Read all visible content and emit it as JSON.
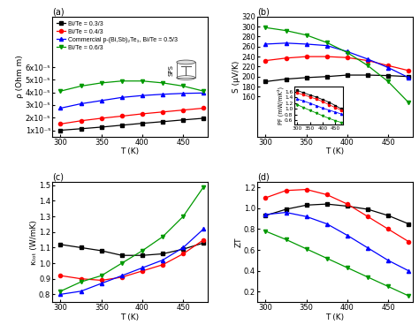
{
  "chart_data": [
    {
      "type": "line",
      "title": "(a)",
      "xlabel": "T (K)",
      "ylabel": "ρ (Ohm m)",
      "x": [
        300,
        325,
        350,
        375,
        400,
        425,
        450,
        475
      ],
      "xlim": [
        290,
        480
      ],
      "xticks": [
        300,
        350,
        400,
        450
      ],
      "ylim": [
        5e-06,
        0.0001
      ],
      "yticks": [
        {
          "value": 1e-05,
          "label": "1x10⁻⁵"
        },
        {
          "value": 2e-05,
          "label": "2x10⁻⁵"
        },
        {
          "value": 3e-05,
          "label": "3x10⁻⁵"
        },
        {
          "value": 4e-05,
          "label": "4x10⁻⁵"
        },
        {
          "value": 5e-05,
          "label": "5x10⁻⁵"
        },
        {
          "value": 6e-05,
          "label": "6x10⁻⁵"
        }
      ],
      "legend": "upper left",
      "annotations": [
        "SPS"
      ],
      "series": [
        {
          "name": "Bi/Te = 0.3/3",
          "color": "#000000",
          "marker": "square",
          "line_style": "solid",
          "values": [
            1e-05,
            1.12e-05,
            1.25e-05,
            1.4e-05,
            1.55e-05,
            1.68e-05,
            1.82e-05,
            1.95e-05
          ]
        },
        {
          "name": "Bi/Te = 0.4/3",
          "color": "#ff0000",
          "marker": "circle",
          "line_style": "solid",
          "values": [
            1.5e-05,
            1.75e-05,
            1.95e-05,
            2.12e-05,
            2.3e-05,
            2.45e-05,
            2.6e-05,
            2.75e-05
          ]
        },
        {
          "name": "Commercial p-(Bi,Sb)₂Te₃, Bi/Te = 0.5/3",
          "color": "#0000ff",
          "marker": "triangle_up",
          "line_style": "solid",
          "values": [
            2.75e-05,
            3.1e-05,
            3.35e-05,
            3.6e-05,
            3.75e-05,
            3.85e-05,
            3.92e-05,
            3.95e-05
          ]
        },
        {
          "name": "Bi/Te = 0.6/3",
          "color": "#009900",
          "marker": "triangle_down",
          "line_style": "solid",
          "values": [
            4.1e-05,
            4.5e-05,
            4.75e-05,
            4.9e-05,
            4.9e-05,
            4.75e-05,
            4.5e-05,
            4.1e-05
          ]
        }
      ]
    },
    {
      "type": "line",
      "title": "(b)",
      "xlabel": "T (K)",
      "ylabel": "S (μV/K)",
      "x": [
        300,
        325,
        350,
        375,
        400,
        425,
        450,
        475
      ],
      "xlim": [
        290,
        480
      ],
      "xticks": [
        300,
        350,
        400,
        450
      ],
      "ylim": [
        80,
        320
      ],
      "yticks": [
        160,
        180,
        200,
        220,
        240,
        260,
        280,
        300,
        320
      ],
      "series": [
        {
          "color": "#000000",
          "marker": "square",
          "line_style": "solid",
          "values": [
            190,
            195,
            198,
            200,
            203,
            203,
            202,
            200
          ]
        },
        {
          "color": "#ff0000",
          "marker": "circle",
          "line_style": "solid",
          "values": [
            232,
            237,
            240,
            240,
            238,
            232,
            222,
            212
          ]
        },
        {
          "color": "#0000ff",
          "marker": "triangle_up",
          "line_style": "solid",
          "values": [
            265,
            267,
            265,
            262,
            250,
            235,
            218,
            198
          ]
        },
        {
          "color": "#009900",
          "marker": "triangle_down",
          "line_style": "solid",
          "values": [
            298,
            292,
            283,
            268,
            248,
            222,
            190,
            148
          ]
        }
      ]
    },
    {
      "type": "line",
      "ylabel": "PF (mW/mK²)",
      "x": [
        300,
        325,
        350,
        375,
        400,
        425,
        450,
        475
      ],
      "xlim": [
        290,
        480
      ],
      "xticks": [
        300,
        350,
        400,
        450
      ],
      "ylim": [
        0.45,
        1.8
      ],
      "yticks": [
        0.6,
        0.8,
        {
          "value": 1,
          "label": "1.0"
        },
        1.2,
        1.4,
        1.6
      ],
      "series": [
        {
          "color": "#000000",
          "marker": "square",
          "line_style": "solid",
          "values": [
            1.65,
            1.57,
            1.49,
            1.42,
            1.33,
            1.24,
            1.12,
            1.0
          ]
        },
        {
          "color": "#ff0000",
          "marker": "circle",
          "line_style": "solid",
          "values": [
            1.56,
            1.5,
            1.42,
            1.35,
            1.26,
            1.15,
            1.05,
            0.95
          ]
        },
        {
          "color": "#0000ff",
          "marker": "triangle_up",
          "line_style": "solid",
          "values": [
            1.35,
            1.28,
            1.2,
            1.12,
            1.03,
            0.96,
            0.89,
            0.82
          ]
        },
        {
          "color": "#009900",
          "marker": "triangle_down",
          "line_style": "solid",
          "values": [
            1.15,
            1.05,
            0.95,
            0.86,
            0.76,
            0.67,
            0.59,
            0.52
          ]
        }
      ]
    },
    {
      "type": "line",
      "title": "(c)",
      "xlabel": "T (K)",
      "ylabel": "κₜₒₜ (W/mK)",
      "x": [
        300,
        325,
        350,
        375,
        400,
        425,
        450,
        475
      ],
      "xlim": [
        290,
        480
      ],
      "xticks": [
        300,
        350,
        400,
        450
      ],
      "ylim": [
        0.75,
        1.52
      ],
      "yticks": [
        0.8,
        0.9,
        {
          "value": 1,
          "label": "1.0"
        },
        1.1,
        1.2,
        1.3,
        1.4,
        1.5
      ],
      "series": [
        {
          "color": "#000000",
          "marker": "square",
          "line_style": "solid",
          "values": [
            1.12,
            1.1,
            1.08,
            1.05,
            1.05,
            1.06,
            1.09,
            1.13
          ]
        },
        {
          "color": "#ff0000",
          "marker": "circle",
          "line_style": "solid",
          "values": [
            0.92,
            0.9,
            0.89,
            0.91,
            0.95,
            0.99,
            1.06,
            1.15
          ]
        },
        {
          "color": "#0000ff",
          "marker": "triangle_up",
          "line_style": "solid",
          "values": [
            0.8,
            0.82,
            0.87,
            0.92,
            0.97,
            1.02,
            1.1,
            1.22
          ]
        },
        {
          "color": "#009900",
          "marker": "triangle_down",
          "line_style": "solid",
          "values": [
            0.82,
            0.88,
            0.92,
            1.0,
            1.08,
            1.17,
            1.3,
            1.49
          ]
        }
      ]
    },
    {
      "type": "line",
      "title": "(d)",
      "xlabel": "T (K)",
      "ylabel": "ZT",
      "x": [
        300,
        325,
        350,
        375,
        400,
        425,
        450,
        475
      ],
      "xlim": [
        290,
        480
      ],
      "xticks": [
        300,
        350,
        400,
        450
      ],
      "ylim": [
        0.1,
        1.25
      ],
      "yticks": [
        0.2,
        0.4,
        0.6,
        0.8,
        {
          "value": 1,
          "label": "1.0"
        },
        1.2
      ],
      "series": [
        {
          "color": "#000000",
          "marker": "square",
          "line_style": "solid",
          "values": [
            0.93,
            0.99,
            1.03,
            1.04,
            1.02,
            0.99,
            0.93,
            0.85
          ]
        },
        {
          "color": "#ff0000",
          "marker": "circle",
          "line_style": "solid",
          "values": [
            1.1,
            1.17,
            1.18,
            1.13,
            1.04,
            0.92,
            0.8,
            0.68
          ]
        },
        {
          "color": "#0000ff",
          "marker": "triangle_up",
          "line_style": "solid",
          "values": [
            0.94,
            0.96,
            0.92,
            0.85,
            0.74,
            0.62,
            0.5,
            0.4
          ]
        },
        {
          "color": "#009900",
          "marker": "triangle_down",
          "line_style": "solid",
          "values": [
            0.78,
            0.7,
            0.61,
            0.52,
            0.43,
            0.34,
            0.25,
            0.16
          ]
        }
      ]
    }
  ]
}
